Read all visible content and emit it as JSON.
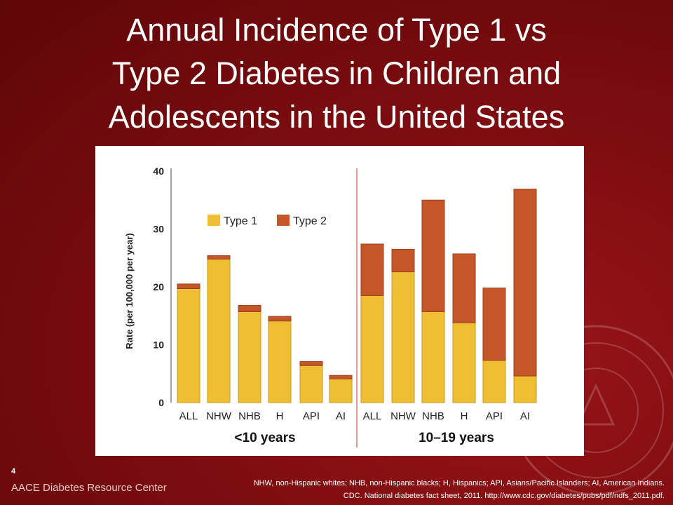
{
  "slide": {
    "title_lines": [
      "Annual Incidence of Type 1 vs",
      "Type 2 Diabetes in Children and",
      "Adolescents in the United States"
    ],
    "slide_number": "4",
    "footer_brand": "AACE Diabetes Resource Center",
    "footnote_lines": [
      "NHW, non-Hispanic whites; NHB, non-Hispanic blacks; H, Hispanics; API, Asians/Pacific Islanders; AI, American Indians.",
      "CDC. National diabetes fact sheet, 2011. http://www.cdc.gov/diabetes/pubs/pdf/ndfs_2011.pdf."
    ]
  },
  "chart_data": {
    "type": "bar",
    "stacked": true,
    "ylabel": "Rate (per 100,000 per year)",
    "ylim": [
      0,
      40
    ],
    "yticks": [
      0,
      10,
      20,
      30,
      40
    ],
    "grid": false,
    "legend_position": "top-left",
    "groups": [
      {
        "label": "<10 years",
        "categories": [
          "ALL",
          "NHW",
          "NHB",
          "H",
          "API",
          "AI"
        ]
      },
      {
        "label": "10–19 years",
        "categories": [
          "ALL",
          "NHW",
          "NHB",
          "H",
          "API",
          "AI"
        ]
      }
    ],
    "series": [
      {
        "name": "Type 1",
        "color": "#eebe33",
        "values": [
          19.7,
          24.8,
          15.7,
          14.1,
          6.4,
          4.1,
          18.5,
          22.6,
          15.7,
          13.8,
          7.3,
          4.6
        ]
      },
      {
        "name": "Type 2",
        "color": "#c4562a",
        "values": [
          0.8,
          0.6,
          1.1,
          0.8,
          0.7,
          0.6,
          8.9,
          3.9,
          19.3,
          11.9,
          12.5,
          32.3
        ]
      }
    ]
  }
}
